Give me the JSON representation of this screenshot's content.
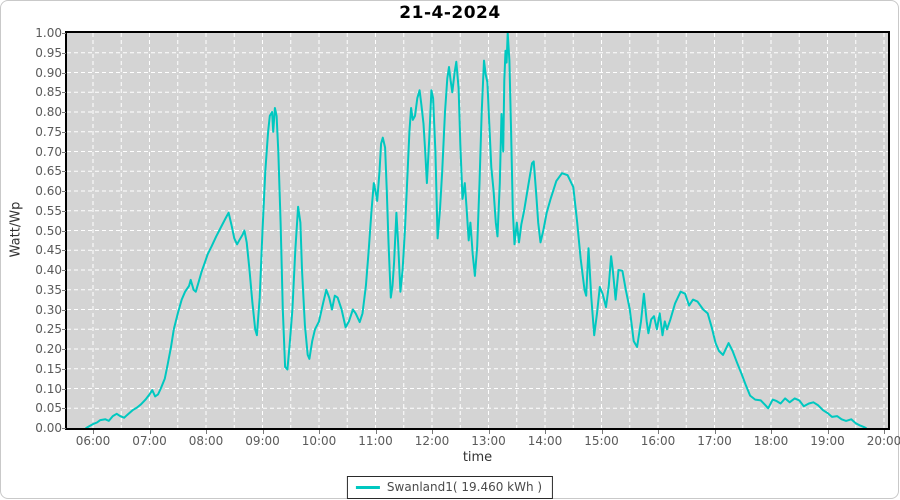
{
  "title": "21-4-2024",
  "y_axis": {
    "label": "Watt/Wp",
    "ticks": [
      "1.00",
      "0.95",
      "0.90",
      "0.85",
      "0.80",
      "0.75",
      "0.70",
      "0.65",
      "0.60",
      "0.55",
      "0.50",
      "0.45",
      "0.40",
      "0.35",
      "0.30",
      "0.25",
      "0.20",
      "0.15",
      "0.10",
      "0.05",
      "0.00"
    ]
  },
  "x_axis": {
    "label": "time",
    "ticks": [
      "06:00",
      "07:00",
      "08:00",
      "09:00",
      "10:00",
      "11:00",
      "12:00",
      "13:00",
      "14:00",
      "15:00",
      "16:00",
      "17:00",
      "18:00",
      "19:00",
      "20:00"
    ]
  },
  "legend": {
    "label": "Swanland1( 19.460 kWh )"
  },
  "colors": {
    "line": "#00c8c0",
    "plot_background": "#d4d4d4",
    "grid": "#ffffff",
    "axis_border": "#000000",
    "tick_text": "#5a5a5a"
  },
  "chart_data": {
    "type": "line",
    "title": "21-4-2024",
    "xlabel": "time",
    "ylabel": "Watt/Wp",
    "xlim_hours": [
      5.54,
      20.07
    ],
    "ylim": [
      0.0,
      1.0
    ],
    "x_tick_hours": [
      6,
      7,
      8,
      9,
      10,
      11,
      12,
      13,
      14,
      15,
      16,
      17,
      18,
      19,
      20
    ],
    "y_tick_step": 0.05,
    "grid": "white dashed, vertical every 30 min, horizontal every 0.05",
    "legend_position": "bottom-center",
    "series": [
      {
        "name": "Swanland1( 19.460 kWh )",
        "color": "#00c8c0",
        "points": [
          [
            5.88,
            0
          ],
          [
            5.93,
            0.004
          ],
          [
            6.0,
            0.01
          ],
          [
            6.07,
            0.014
          ],
          [
            6.13,
            0.02
          ],
          [
            6.22,
            0.022
          ],
          [
            6.28,
            0.018
          ],
          [
            6.35,
            0.03
          ],
          [
            6.42,
            0.036
          ],
          [
            6.48,
            0.03
          ],
          [
            6.55,
            0.026
          ],
          [
            6.62,
            0.035
          ],
          [
            6.7,
            0.045
          ],
          [
            6.78,
            0.052
          ],
          [
            6.85,
            0.06
          ],
          [
            6.93,
            0.072
          ],
          [
            7.0,
            0.085
          ],
          [
            7.05,
            0.096
          ],
          [
            7.1,
            0.08
          ],
          [
            7.15,
            0.085
          ],
          [
            7.2,
            0.1
          ],
          [
            7.27,
            0.125
          ],
          [
            7.32,
            0.16
          ],
          [
            7.38,
            0.205
          ],
          [
            7.43,
            0.25
          ],
          [
            7.5,
            0.29
          ],
          [
            7.57,
            0.325
          ],
          [
            7.63,
            0.345
          ],
          [
            7.7,
            0.36
          ],
          [
            7.73,
            0.375
          ],
          [
            7.78,
            0.35
          ],
          [
            7.82,
            0.345
          ],
          [
            7.87,
            0.37
          ],
          [
            7.92,
            0.395
          ],
          [
            7.97,
            0.415
          ],
          [
            8.03,
            0.44
          ],
          [
            8.1,
            0.46
          ],
          [
            8.18,
            0.485
          ],
          [
            8.27,
            0.51
          ],
          [
            8.35,
            0.532
          ],
          [
            8.4,
            0.545
          ],
          [
            8.45,
            0.515
          ],
          [
            8.5,
            0.48
          ],
          [
            8.55,
            0.465
          ],
          [
            8.6,
            0.478
          ],
          [
            8.65,
            0.49
          ],
          [
            8.68,
            0.5
          ],
          [
            8.72,
            0.47
          ],
          [
            8.77,
            0.4
          ],
          [
            8.82,
            0.32
          ],
          [
            8.87,
            0.25
          ],
          [
            8.9,
            0.235
          ],
          [
            8.95,
            0.33
          ],
          [
            9.0,
            0.5
          ],
          [
            9.05,
            0.65
          ],
          [
            9.1,
            0.75
          ],
          [
            9.13,
            0.79
          ],
          [
            9.17,
            0.8
          ],
          [
            9.19,
            0.75
          ],
          [
            9.22,
            0.81
          ],
          [
            9.25,
            0.79
          ],
          [
            9.28,
            0.7
          ],
          [
            9.32,
            0.52
          ],
          [
            9.36,
            0.3
          ],
          [
            9.4,
            0.155
          ],
          [
            9.44,
            0.148
          ],
          [
            9.48,
            0.21
          ],
          [
            9.53,
            0.3
          ],
          [
            9.58,
            0.45
          ],
          [
            9.63,
            0.56
          ],
          [
            9.67,
            0.52
          ],
          [
            9.7,
            0.4
          ],
          [
            9.75,
            0.26
          ],
          [
            9.8,
            0.185
          ],
          [
            9.83,
            0.175
          ],
          [
            9.88,
            0.22
          ],
          [
            9.93,
            0.25
          ],
          [
            10.0,
            0.27
          ],
          [
            10.07,
            0.315
          ],
          [
            10.13,
            0.35
          ],
          [
            10.18,
            0.33
          ],
          [
            10.23,
            0.3
          ],
          [
            10.28,
            0.335
          ],
          [
            10.33,
            0.33
          ],
          [
            10.4,
            0.3
          ],
          [
            10.47,
            0.255
          ],
          [
            10.53,
            0.27
          ],
          [
            10.6,
            0.3
          ],
          [
            10.65,
            0.29
          ],
          [
            10.72,
            0.268
          ],
          [
            10.77,
            0.29
          ],
          [
            10.83,
            0.36
          ],
          [
            10.88,
            0.45
          ],
          [
            10.93,
            0.55
          ],
          [
            10.97,
            0.62
          ],
          [
            11.0,
            0.6
          ],
          [
            11.03,
            0.575
          ],
          [
            11.07,
            0.65
          ],
          [
            11.1,
            0.72
          ],
          [
            11.13,
            0.735
          ],
          [
            11.17,
            0.71
          ],
          [
            11.2,
            0.6
          ],
          [
            11.23,
            0.47
          ],
          [
            11.27,
            0.33
          ],
          [
            11.3,
            0.36
          ],
          [
            11.33,
            0.42
          ],
          [
            11.37,
            0.545
          ],
          [
            11.4,
            0.47
          ],
          [
            11.44,
            0.345
          ],
          [
            11.48,
            0.4
          ],
          [
            11.52,
            0.5
          ],
          [
            11.56,
            0.62
          ],
          [
            11.6,
            0.75
          ],
          [
            11.63,
            0.81
          ],
          [
            11.66,
            0.78
          ],
          [
            11.7,
            0.79
          ],
          [
            11.74,
            0.835
          ],
          [
            11.78,
            0.855
          ],
          [
            11.81,
            0.82
          ],
          [
            11.85,
            0.77
          ],
          [
            11.88,
            0.7
          ],
          [
            11.91,
            0.62
          ],
          [
            11.95,
            0.73
          ],
          [
            11.99,
            0.855
          ],
          [
            12.02,
            0.835
          ],
          [
            12.06,
            0.7
          ],
          [
            12.1,
            0.48
          ],
          [
            12.14,
            0.55
          ],
          [
            12.18,
            0.65
          ],
          [
            12.23,
            0.8
          ],
          [
            12.27,
            0.885
          ],
          [
            12.3,
            0.914
          ],
          [
            12.33,
            0.88
          ],
          [
            12.36,
            0.85
          ],
          [
            12.4,
            0.9
          ],
          [
            12.43,
            0.927
          ],
          [
            12.47,
            0.86
          ],
          [
            12.5,
            0.72
          ],
          [
            12.54,
            0.58
          ],
          [
            12.58,
            0.62
          ],
          [
            12.61,
            0.56
          ],
          [
            12.65,
            0.475
          ],
          [
            12.68,
            0.52
          ],
          [
            12.72,
            0.44
          ],
          [
            12.76,
            0.385
          ],
          [
            12.8,
            0.46
          ],
          [
            12.84,
            0.62
          ],
          [
            12.88,
            0.8
          ],
          [
            12.92,
            0.93
          ],
          [
            12.95,
            0.895
          ],
          [
            12.98,
            0.875
          ],
          [
            13.01,
            0.78
          ],
          [
            13.05,
            0.66
          ],
          [
            13.09,
            0.6
          ],
          [
            13.13,
            0.52
          ],
          [
            13.16,
            0.485
          ],
          [
            13.2,
            0.62
          ],
          [
            13.23,
            0.795
          ],
          [
            13.26,
            0.7
          ],
          [
            13.28,
            0.88
          ],
          [
            13.3,
            0.955
          ],
          [
            13.32,
            0.925
          ],
          [
            13.34,
            1.0
          ],
          [
            13.37,
            0.93
          ],
          [
            13.4,
            0.75
          ],
          [
            13.43,
            0.55
          ],
          [
            13.46,
            0.465
          ],
          [
            13.5,
            0.52
          ],
          [
            13.54,
            0.47
          ],
          [
            13.58,
            0.515
          ],
          [
            13.63,
            0.55
          ],
          [
            13.7,
            0.61
          ],
          [
            13.77,
            0.67
          ],
          [
            13.8,
            0.675
          ],
          [
            13.84,
            0.6
          ],
          [
            13.88,
            0.52
          ],
          [
            13.92,
            0.47
          ],
          [
            13.97,
            0.5
          ],
          [
            14.03,
            0.545
          ],
          [
            14.1,
            0.58
          ],
          [
            14.2,
            0.625
          ],
          [
            14.3,
            0.645
          ],
          [
            14.4,
            0.64
          ],
          [
            14.5,
            0.61
          ],
          [
            14.57,
            0.52
          ],
          [
            14.63,
            0.43
          ],
          [
            14.7,
            0.35
          ],
          [
            14.73,
            0.335
          ],
          [
            14.77,
            0.455
          ],
          [
            14.82,
            0.33
          ],
          [
            14.87,
            0.235
          ],
          [
            14.92,
            0.29
          ],
          [
            14.97,
            0.357
          ],
          [
            15.02,
            0.34
          ],
          [
            15.08,
            0.306
          ],
          [
            15.13,
            0.36
          ],
          [
            15.17,
            0.435
          ],
          [
            15.2,
            0.4
          ],
          [
            15.25,
            0.325
          ],
          [
            15.3,
            0.4
          ],
          [
            15.37,
            0.398
          ],
          [
            15.43,
            0.35
          ],
          [
            15.5,
            0.3
          ],
          [
            15.57,
            0.22
          ],
          [
            15.63,
            0.205
          ],
          [
            15.7,
            0.27
          ],
          [
            15.75,
            0.34
          ],
          [
            15.8,
            0.27
          ],
          [
            15.83,
            0.24
          ],
          [
            15.88,
            0.275
          ],
          [
            15.93,
            0.283
          ],
          [
            15.98,
            0.25
          ],
          [
            16.03,
            0.29
          ],
          [
            16.08,
            0.235
          ],
          [
            16.12,
            0.27
          ],
          [
            16.16,
            0.25
          ],
          [
            16.22,
            0.275
          ],
          [
            16.3,
            0.315
          ],
          [
            16.4,
            0.345
          ],
          [
            16.48,
            0.34
          ],
          [
            16.55,
            0.31
          ],
          [
            16.62,
            0.325
          ],
          [
            16.7,
            0.32
          ],
          [
            16.8,
            0.3
          ],
          [
            16.88,
            0.29
          ],
          [
            16.95,
            0.255
          ],
          [
            17.02,
            0.215
          ],
          [
            17.08,
            0.195
          ],
          [
            17.15,
            0.185
          ],
          [
            17.25,
            0.215
          ],
          [
            17.32,
            0.195
          ],
          [
            17.4,
            0.165
          ],
          [
            17.47,
            0.14
          ],
          [
            17.55,
            0.11
          ],
          [
            17.63,
            0.082
          ],
          [
            17.72,
            0.072
          ],
          [
            17.82,
            0.07
          ],
          [
            17.9,
            0.058
          ],
          [
            17.95,
            0.05
          ],
          [
            18.03,
            0.072
          ],
          [
            18.1,
            0.068
          ],
          [
            18.17,
            0.062
          ],
          [
            18.25,
            0.075
          ],
          [
            18.33,
            0.065
          ],
          [
            18.42,
            0.075
          ],
          [
            18.5,
            0.07
          ],
          [
            18.58,
            0.055
          ],
          [
            18.67,
            0.062
          ],
          [
            18.75,
            0.065
          ],
          [
            18.83,
            0.058
          ],
          [
            18.92,
            0.045
          ],
          [
            19.0,
            0.038
          ],
          [
            19.08,
            0.028
          ],
          [
            19.17,
            0.03
          ],
          [
            19.25,
            0.022
          ],
          [
            19.33,
            0.018
          ],
          [
            19.42,
            0.022
          ],
          [
            19.5,
            0.012
          ],
          [
            19.58,
            0.006
          ],
          [
            19.65,
            0.002
          ],
          [
            19.68,
            0
          ]
        ]
      }
    ]
  }
}
